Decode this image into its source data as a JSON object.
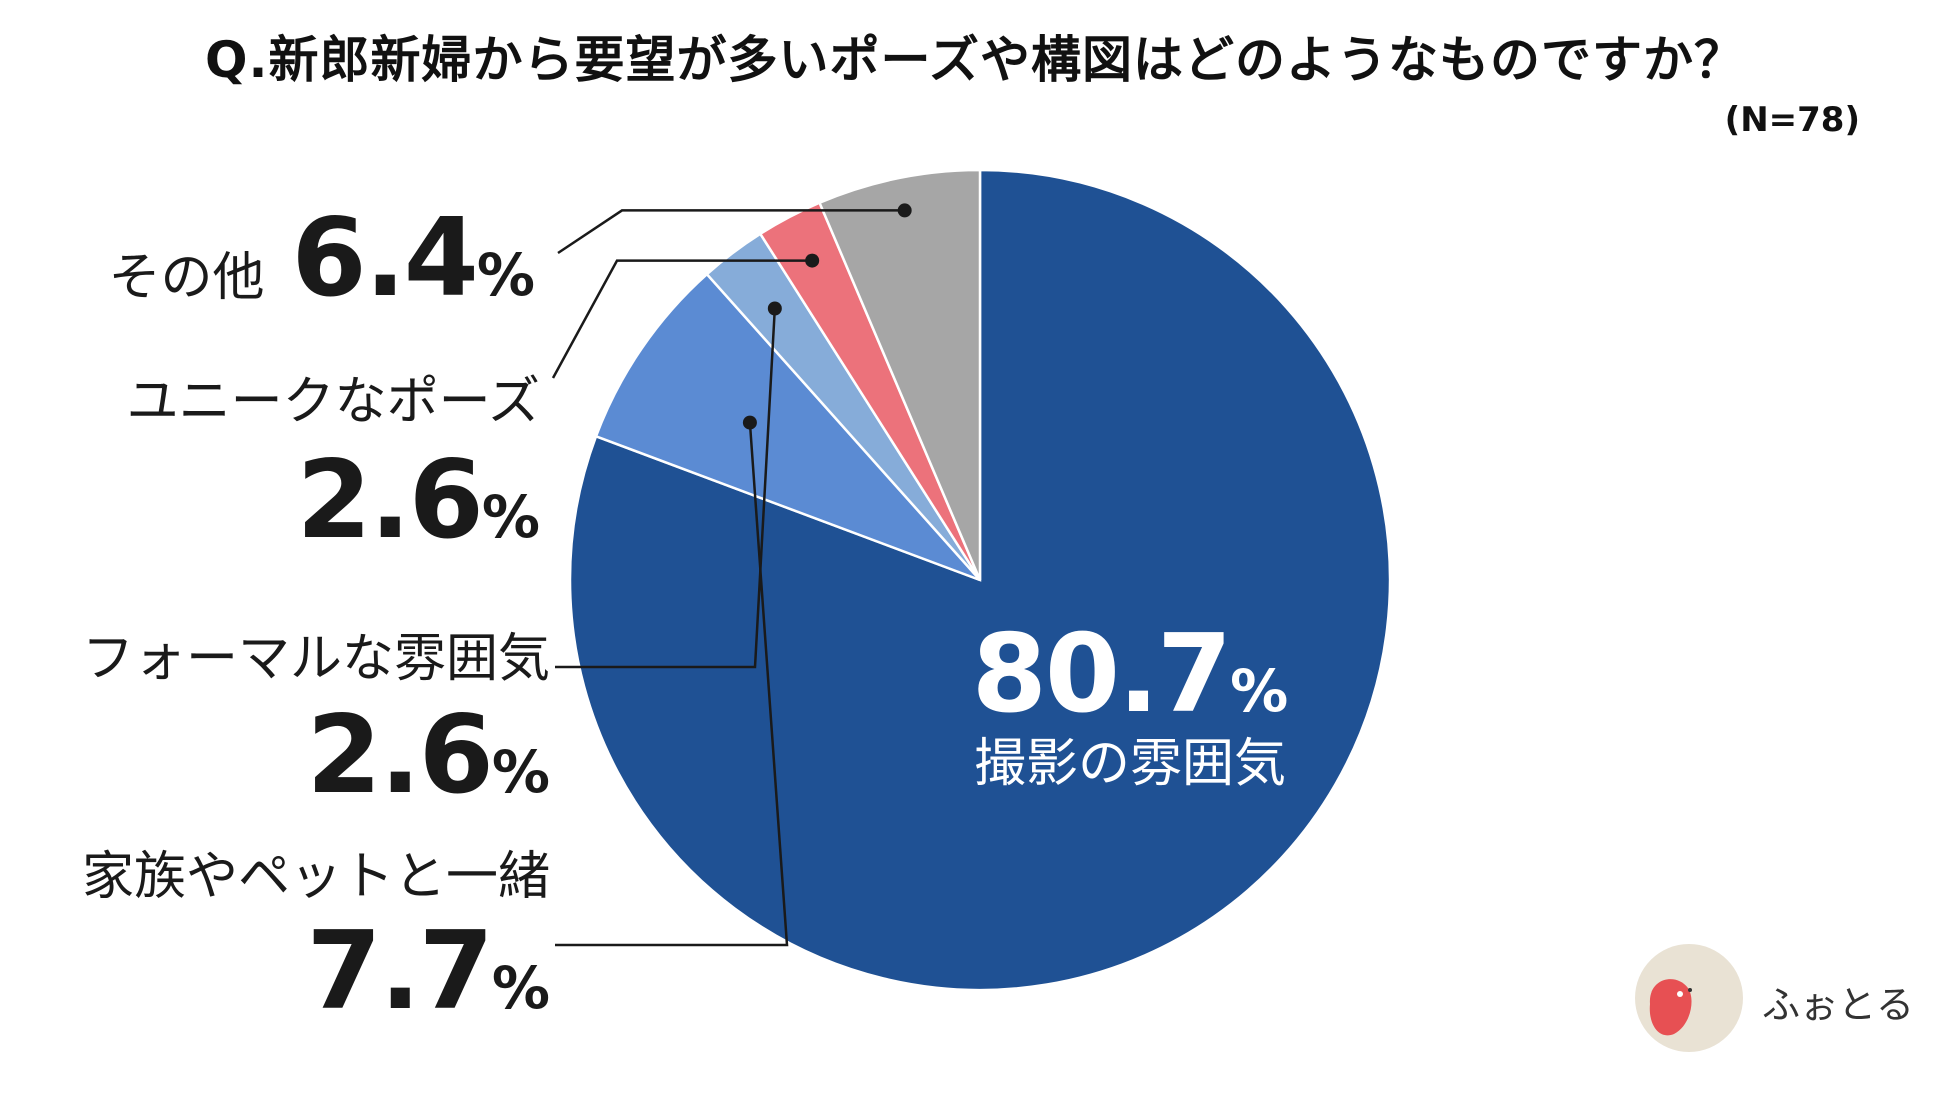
{
  "title": "Q.新郎新婦から要望が多いポーズや構図はどのようなものですか？",
  "sample": "(N=78)",
  "logo_text": "ふぉとる",
  "chart_data": {
    "type": "pie",
    "start_angle_deg": 0,
    "direction": "clockwise",
    "slices": [
      {
        "label": "撮影の雰囲気",
        "value": 80.7,
        "display": "80.7",
        "unit": "%",
        "color": "#1f5194"
      },
      {
        "label": "家族やペットと一緒",
        "value": 7.7,
        "display": "7.7",
        "unit": "%",
        "color": "#5b8bd3"
      },
      {
        "label": "フォーマルな雰囲気",
        "value": 2.6,
        "display": "2.6",
        "unit": "%",
        "color": "#86acd9"
      },
      {
        "label": "ユニークなポーズ",
        "value": 2.6,
        "display": "2.6",
        "unit": "%",
        "color": "#ec727b"
      },
      {
        "label": "その他",
        "value": 6.4,
        "display": "6.4",
        "unit": "%",
        "color": "#a6a6a6"
      }
    ]
  },
  "logo_colors": {
    "circle": "#e9e2d4",
    "face": "#e75053"
  }
}
